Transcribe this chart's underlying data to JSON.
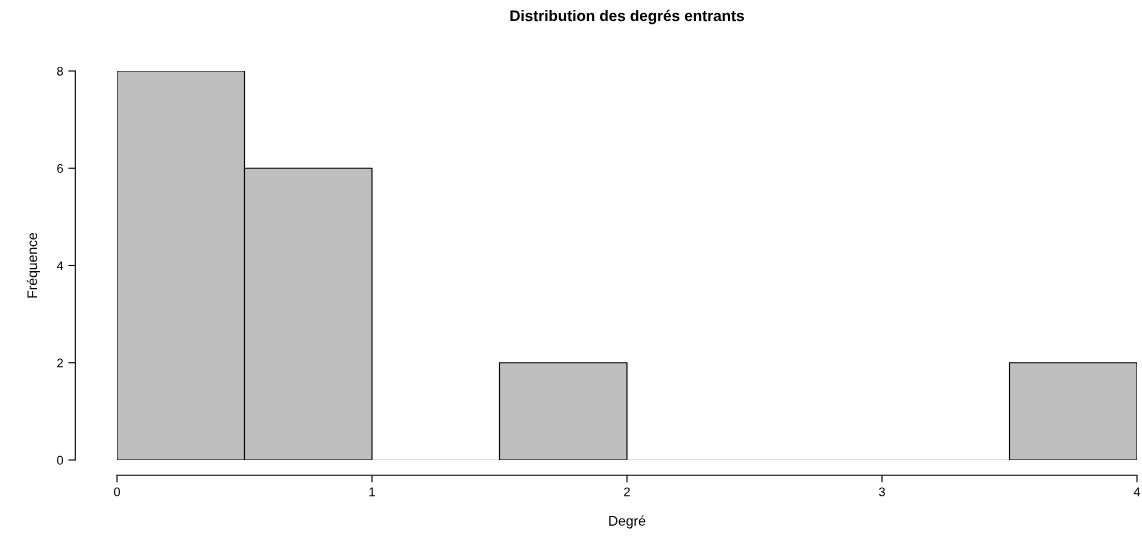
{
  "chart_data": {
    "type": "histogram",
    "title": "Distribution des degrés entrants",
    "xlabel": "Degré",
    "ylabel": "Fréquence",
    "bins": [
      0,
      0.5,
      1,
      1.5,
      2,
      2.5,
      3,
      3.5,
      4
    ],
    "values": [
      8,
      6,
      0,
      2,
      0,
      0,
      0,
      2
    ],
    "color": "#bebebe",
    "xlim": [
      0,
      4
    ],
    "xticks": [
      0,
      1,
      2,
      3,
      4
    ],
    "ylim": [
      0,
      8
    ],
    "yticks": [
      0,
      2,
      4,
      6,
      8
    ],
    "grid": false
  }
}
